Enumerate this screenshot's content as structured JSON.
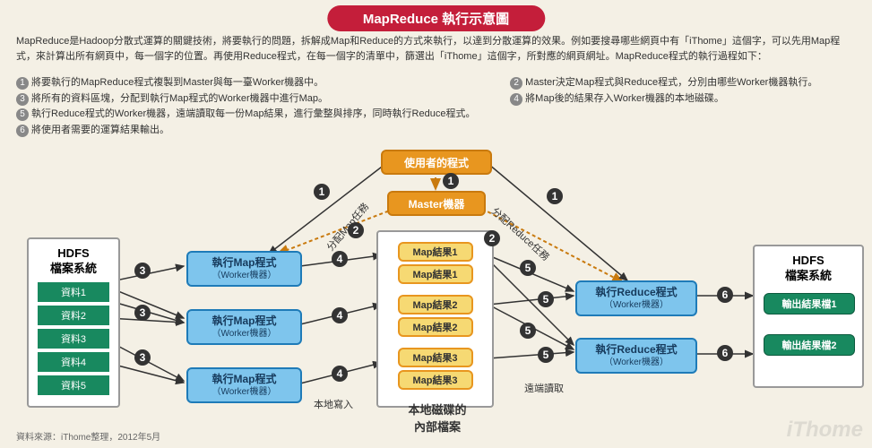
{
  "title": "MapReduce 執行示意圖",
  "description": "MapReduce是Hadoop分散式運算的關鍵技術，將要執行的問題，拆解成Map和Reduce的方式來執行，以達到分散運算的效果。例如要搜尋哪些網頁中有「iThome」這個字，可以先用Map程式，來計算出所有網頁中，每一個字的位置。再使用Reduce程式，在每一個字的清單中，篩選出「iThome」這個字，所對應的網頁網址。MapReduce程式的執行過程如下：",
  "steps_left": [
    "將要執行的MapReduce程式複製到Master與每一臺Worker機器中。",
    "將所有的資料區塊，分配到執行Map程式的Worker機器中進行Map。",
    "執行Reduce程式的Worker機器，遠端讀取每一份Map結果，進行彙整與排序，同時執行Reduce程式。",
    "將使用者需要的運算結果輸出。"
  ],
  "steps_left_nums": [
    "1",
    "3",
    "5",
    "6"
  ],
  "steps_right": [
    "Master決定Map程式與Reduce程式，分別由哪些Worker機器執行。",
    "將Map後的結果存入Worker機器的本地磁碟。"
  ],
  "steps_right_nums": [
    "2",
    "4"
  ],
  "user_program": "使用者的程式",
  "master": "Master機器",
  "hdfs_title": "HDFS\n檔案系統",
  "data_items": [
    "資料1",
    "資料2",
    "資料3",
    "資料4",
    "資料5"
  ],
  "map_worker_l1": "執行Map程式",
  "map_worker_l2": "（Worker機器）",
  "reduce_worker_l1": "執行Reduce程式",
  "reduce_worker_l2": "（Worker機器）",
  "map_results": [
    "Map結果1",
    "Map結果1",
    "Map結果2",
    "Map結果2",
    "Map結果3",
    "Map結果3"
  ],
  "local_disk": "本地磁碟的\n內部檔案",
  "output1": "輸出結果檔1",
  "output2": "輸出結果檔2",
  "local_write": "本地寫入",
  "remote_read": "遠端讀取",
  "assign_map": "分配Map任務",
  "assign_reduce": "分配Reduce任務",
  "source": "資料來源：iThome整理，2012年5月",
  "watermark": "iThome",
  "colors": {
    "bg": "#f4f0e5",
    "title_bg": "#c41e3a",
    "orange": "#e8961f",
    "blue": "#7ec5ed",
    "green": "#18895f",
    "yellow": "#f6d973"
  }
}
